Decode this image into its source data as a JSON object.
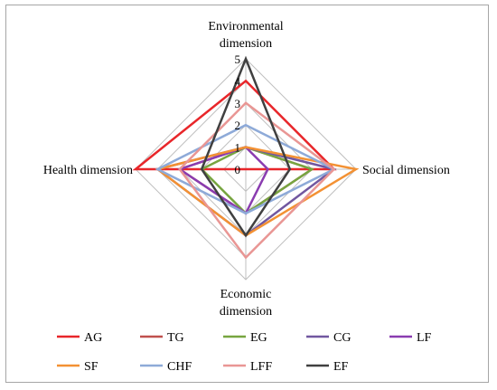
{
  "chart_data": {
    "type": "radar",
    "axes": [
      "Environmental dimension",
      "Social dimension",
      "Economic dimension",
      "Health dimension"
    ],
    "axis_label_lines": [
      [
        "Environmental",
        "dimension"
      ],
      [
        "Social dimension"
      ],
      [
        "Economic",
        "dimension"
      ],
      [
        "Health dimension"
      ]
    ],
    "scale": {
      "min": 0,
      "max": 5,
      "ticks": [
        0,
        1,
        2,
        3,
        4,
        5
      ]
    },
    "grid": true,
    "legend_position": "bottom",
    "series": [
      {
        "name": "AG",
        "color": "#e8262a",
        "values": [
          4,
          4,
          0,
          5
        ]
      },
      {
        "name": "TG",
        "color": "#c0504d",
        "values": [
          1,
          3,
          2,
          3
        ]
      },
      {
        "name": "EG",
        "color": "#77a540",
        "values": [
          1,
          3,
          2,
          2
        ]
      },
      {
        "name": "CG",
        "color": "#7157a0",
        "values": [
          1,
          4,
          3,
          4
        ]
      },
      {
        "name": "LF",
        "color": "#8a3cb0",
        "values": [
          1,
          1,
          2,
          3
        ]
      },
      {
        "name": "SF",
        "color": "#f39133",
        "values": [
          1,
          5,
          3,
          4
        ]
      },
      {
        "name": "CHF",
        "color": "#8eaad8",
        "values": [
          2,
          4,
          2,
          4
        ]
      },
      {
        "name": "LFF",
        "color": "#e99694",
        "values": [
          3,
          4,
          4,
          3
        ]
      },
      {
        "name": "EF",
        "color": "#404040",
        "values": [
          5,
          2,
          3,
          2
        ]
      }
    ]
  }
}
